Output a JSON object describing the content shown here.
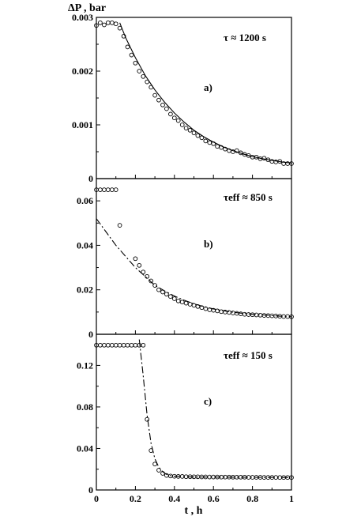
{
  "chart_data": [
    {
      "type": "scatter",
      "panel_label": "a)",
      "annotation": "τ ≈ 1200 s",
      "ylabel": "ΔP , bar",
      "xlim": [
        0,
        1
      ],
      "ylim": [
        0,
        0.003
      ],
      "yticks": [
        "0",
        "0.001",
        "0.002",
        "0.003"
      ],
      "series": [
        {
          "kind": "points",
          "x": [
            0.0,
            0.02,
            0.04,
            0.06,
            0.08,
            0.1,
            0.12,
            0.14,
            0.16,
            0.18,
            0.2,
            0.22,
            0.24,
            0.26,
            0.28,
            0.3,
            0.32,
            0.34,
            0.36,
            0.38,
            0.4,
            0.42,
            0.44,
            0.46,
            0.48,
            0.5,
            0.52,
            0.54,
            0.56,
            0.58,
            0.6,
            0.62,
            0.64,
            0.66,
            0.68,
            0.7,
            0.72,
            0.74,
            0.76,
            0.78,
            0.8,
            0.82,
            0.84,
            0.86,
            0.88,
            0.9,
            0.92,
            0.94,
            0.96,
            0.98,
            1.0
          ],
          "y": [
            0.00285,
            0.0029,
            0.00286,
            0.0029,
            0.0029,
            0.00288,
            0.0028,
            0.00265,
            0.00245,
            0.0023,
            0.00215,
            0.002,
            0.0019,
            0.0018,
            0.0017,
            0.00155,
            0.00146,
            0.00137,
            0.0013,
            0.0012,
            0.00113,
            0.00108,
            0.001,
            0.00094,
            0.0009,
            0.00085,
            0.0008,
            0.00076,
            0.0007,
            0.00067,
            0.00065,
            0.0006,
            0.00058,
            0.00055,
            0.00052,
            0.0005,
            0.00052,
            0.00048,
            0.00045,
            0.00043,
            0.0004,
            0.0004,
            0.00037,
            0.00038,
            0.00035,
            0.00032,
            0.00031,
            0.00032,
            0.00028,
            0.00028,
            0.00028
          ]
        },
        {
          "kind": "fit",
          "style": "solid",
          "x": [
            0.12,
            0.15,
            0.2,
            0.25,
            0.3,
            0.35,
            0.4,
            0.45,
            0.5,
            0.55,
            0.6,
            0.65,
            0.7,
            0.75,
            0.8,
            0.85,
            0.9,
            0.95,
            1.0
          ],
          "y": [
            0.0029,
            0.00262,
            0.00225,
            0.00192,
            0.00165,
            0.00142,
            0.00122,
            0.00105,
            0.0009,
            0.00078,
            0.00068,
            0.00059,
            0.00052,
            0.00046,
            0.00041,
            0.00037,
            0.00034,
            0.00031,
            0.00029
          ]
        }
      ]
    },
    {
      "type": "scatter",
      "panel_label": "b)",
      "annotation": "τeff ≈ 850 s",
      "xlim": [
        0,
        1
      ],
      "ylim": [
        0,
        0.07
      ],
      "yticks": [
        "0",
        "0.02",
        "0.04",
        "0.06"
      ],
      "series": [
        {
          "kind": "points",
          "x": [
            0.0,
            0.02,
            0.04,
            0.06,
            0.08,
            0.1,
            0.12,
            0.2,
            0.22,
            0.24,
            0.26,
            0.28,
            0.3,
            0.32,
            0.34,
            0.36,
            0.38,
            0.4,
            0.42,
            0.44,
            0.46,
            0.48,
            0.5,
            0.52,
            0.54,
            0.56,
            0.58,
            0.6,
            0.62,
            0.64,
            0.66,
            0.68,
            0.7,
            0.72,
            0.74,
            0.76,
            0.78,
            0.8,
            0.82,
            0.84,
            0.86,
            0.88,
            0.9,
            0.92,
            0.94,
            0.96,
            0.98,
            1.0
          ],
          "y": [
            0.065,
            0.065,
            0.065,
            0.065,
            0.065,
            0.065,
            0.049,
            0.034,
            0.031,
            0.028,
            0.026,
            0.024,
            0.022,
            0.02,
            0.019,
            0.018,
            0.017,
            0.016,
            0.015,
            0.0145,
            0.014,
            0.0135,
            0.013,
            0.0125,
            0.012,
            0.0115,
            0.011,
            0.0108,
            0.0105,
            0.0102,
            0.01,
            0.0098,
            0.0096,
            0.0094,
            0.0092,
            0.009,
            0.0089,
            0.0088,
            0.0087,
            0.0086,
            0.0085,
            0.0084,
            0.0083,
            0.0082,
            0.0081,
            0.008,
            0.008,
            0.0079
          ]
        },
        {
          "kind": "fit",
          "style": "dashdot",
          "x": [
            0.0,
            0.05,
            0.1,
            0.15,
            0.2,
            0.25,
            0.3,
            0.35,
            0.4,
            0.45,
            0.5,
            0.55,
            0.6,
            0.65,
            0.7,
            0.75,
            0.8,
            0.85,
            0.9,
            0.95,
            1.0
          ],
          "y": [
            0.052,
            0.046,
            0.04,
            0.035,
            0.03,
            0.026,
            0.022,
            0.0195,
            0.0172,
            0.0153,
            0.0137,
            0.0124,
            0.0114,
            0.0106,
            0.0099,
            0.0094,
            0.009,
            0.0087,
            0.0084,
            0.0081,
            0.0079
          ]
        }
      ]
    },
    {
      "type": "scatter",
      "panel_label": "c)",
      "annotation": "τeff ≈ 150 s",
      "xlabel": "t , h",
      "xlim": [
        0,
        1
      ],
      "ylim": [
        0,
        0.15
      ],
      "xticks": [
        "0",
        "0.2",
        "0.4",
        "0.6",
        "0.8",
        "1"
      ],
      "yticks": [
        "0",
        "0.04",
        "0.08",
        "0.12"
      ],
      "series": [
        {
          "kind": "points",
          "x": [
            0.0,
            0.02,
            0.04,
            0.06,
            0.08,
            0.1,
            0.12,
            0.14,
            0.16,
            0.18,
            0.2,
            0.22,
            0.24,
            0.26,
            0.28,
            0.3,
            0.32,
            0.34,
            0.36,
            0.38,
            0.4,
            0.42,
            0.44,
            0.46,
            0.48,
            0.5,
            0.52,
            0.54,
            0.56,
            0.58,
            0.6,
            0.62,
            0.64,
            0.66,
            0.68,
            0.7,
            0.72,
            0.74,
            0.76,
            0.78,
            0.8,
            0.82,
            0.84,
            0.86,
            0.88,
            0.9,
            0.92,
            0.94,
            0.96,
            0.98,
            1.0
          ],
          "y": [
            0.1395,
            0.1395,
            0.1395,
            0.1395,
            0.1395,
            0.1395,
            0.1395,
            0.1395,
            0.1395,
            0.1395,
            0.1395,
            0.1395,
            0.1395,
            0.068,
            0.038,
            0.025,
            0.019,
            0.016,
            0.014,
            0.0135,
            0.0132,
            0.013,
            0.013,
            0.0128,
            0.0128,
            0.0127,
            0.0127,
            0.0126,
            0.0126,
            0.0125,
            0.0125,
            0.0125,
            0.0124,
            0.0124,
            0.0124,
            0.0123,
            0.0123,
            0.0123,
            0.0123,
            0.0122,
            0.0122,
            0.0122,
            0.0122,
            0.0121,
            0.0121,
            0.0121,
            0.0121,
            0.012,
            0.012,
            0.012,
            0.012
          ]
        },
        {
          "kind": "fit",
          "style": "dashdot",
          "x": [
            0.22,
            0.24,
            0.26,
            0.28,
            0.3,
            0.32,
            0.34,
            0.36,
            0.38,
            0.4,
            0.45,
            0.5,
            0.6,
            0.7,
            0.8,
            0.9,
            1.0
          ],
          "y": [
            0.145,
            0.11,
            0.072,
            0.045,
            0.03,
            0.022,
            0.0175,
            0.015,
            0.0138,
            0.0132,
            0.0127,
            0.0125,
            0.0124,
            0.0123,
            0.0122,
            0.0121,
            0.012
          ]
        }
      ]
    }
  ]
}
